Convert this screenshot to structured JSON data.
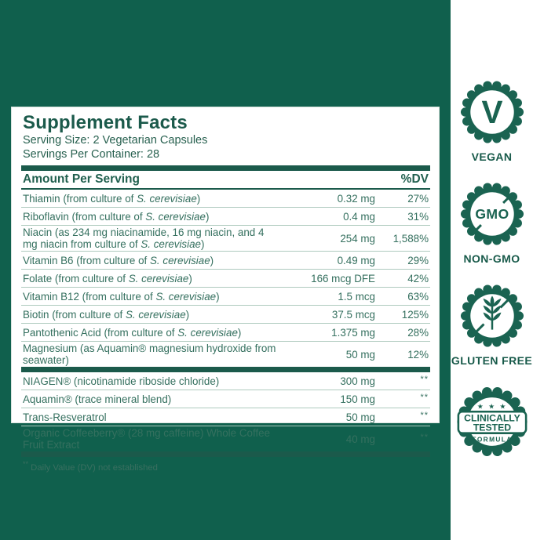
{
  "panel": {
    "title": "Supplement Facts",
    "serving_size": "Serving Size: 2 Vegetarian Capsules",
    "servings_per_container": "Servings Per Container: 28",
    "header": {
      "amount_label": "Amount Per Serving",
      "dv_label": "%DV"
    },
    "rows_primary": [
      {
        "name_pre": "Thiamin (from culture of ",
        "name_it": "S. cerevisiae",
        "name_post": ")",
        "amount": "0.32 mg",
        "dv": "27%"
      },
      {
        "name_pre": "Riboflavin (from culture of ",
        "name_it": "S. cerevisiae",
        "name_post": ")",
        "amount": "0.4 mg",
        "dv": "31%"
      },
      {
        "name_pre": "Niacin (as 234 mg niacinamide, 16 mg niacin, and 4 mg niacin from culture of ",
        "name_it": "S. cerevisiae",
        "name_post": ")",
        "amount": "254 mg",
        "dv": "1,588%"
      },
      {
        "name_pre": "Vitamin B6 (from culture of ",
        "name_it": "S. cerevisiae",
        "name_post": ")",
        "amount": "0.49 mg",
        "dv": "29%"
      },
      {
        "name_pre": "Folate (from culture of ",
        "name_it": "S. cerevisiae",
        "name_post": ")",
        "amount": "166 mcg DFE",
        "dv": "42%"
      },
      {
        "name_pre": "Vitamin B12 (from culture of ",
        "name_it": "S. cerevisiae",
        "name_post": ")",
        "amount": "1.5 mcg",
        "dv": "63%"
      },
      {
        "name_pre": "Biotin (from culture of ",
        "name_it": "S. cerevisiae",
        "name_post": ")",
        "amount": "37.5 mcg",
        "dv": "125%"
      },
      {
        "name_pre": "Pantothenic Acid (from culture of ",
        "name_it": "S. cerevisiae",
        "name_post": ")",
        "amount": "1.375 mg",
        "dv": "28%"
      },
      {
        "name_pre": "Magnesium (as Aquamin® magnesium hydroxide from seawater)",
        "name_it": "",
        "name_post": "",
        "amount": "50 mg",
        "dv": "12%"
      }
    ],
    "rows_secondary": [
      {
        "name_pre": "NIAGEN® (nicotinamide riboside chloride)",
        "name_it": "",
        "name_post": "",
        "amount": "300 mg",
        "dv": "**"
      },
      {
        "name_pre": "Aquamin® (trace mineral blend)",
        "name_it": "",
        "name_post": "",
        "amount": "150 mg",
        "dv": "**"
      },
      {
        "name_pre": "Trans-Resveratrol",
        "name_it": "",
        "name_post": "",
        "amount": "50 mg",
        "dv": "**"
      },
      {
        "name_pre": "Organic Coffeeberry® (28 mg caffeine) Whole Coffee Fruit Extract",
        "name_it": "",
        "name_post": "",
        "amount": "40 mg",
        "dv": "**"
      }
    ],
    "footnote_marker": "**",
    "footnote_text": " Daily Value (DV) not established"
  },
  "badges": {
    "vegan": {
      "letter": "V",
      "label": "VEGAN"
    },
    "non_gmo": {
      "circle_text": "GMO",
      "label": "NON-GMO"
    },
    "gluten_free": {
      "label": "GLUTEN FREE"
    },
    "clinical": {
      "stars": "★ ★ ★",
      "line1": "CLINICALLY",
      "line2": "TESTED",
      "line3": "FORMULA"
    }
  },
  "colors": {
    "background_green": "#10604d",
    "accent_green": "#1b5a4b",
    "row_text_green": "#35705f",
    "separator_green": "#aecabe",
    "panel_white": "#ffffff"
  }
}
